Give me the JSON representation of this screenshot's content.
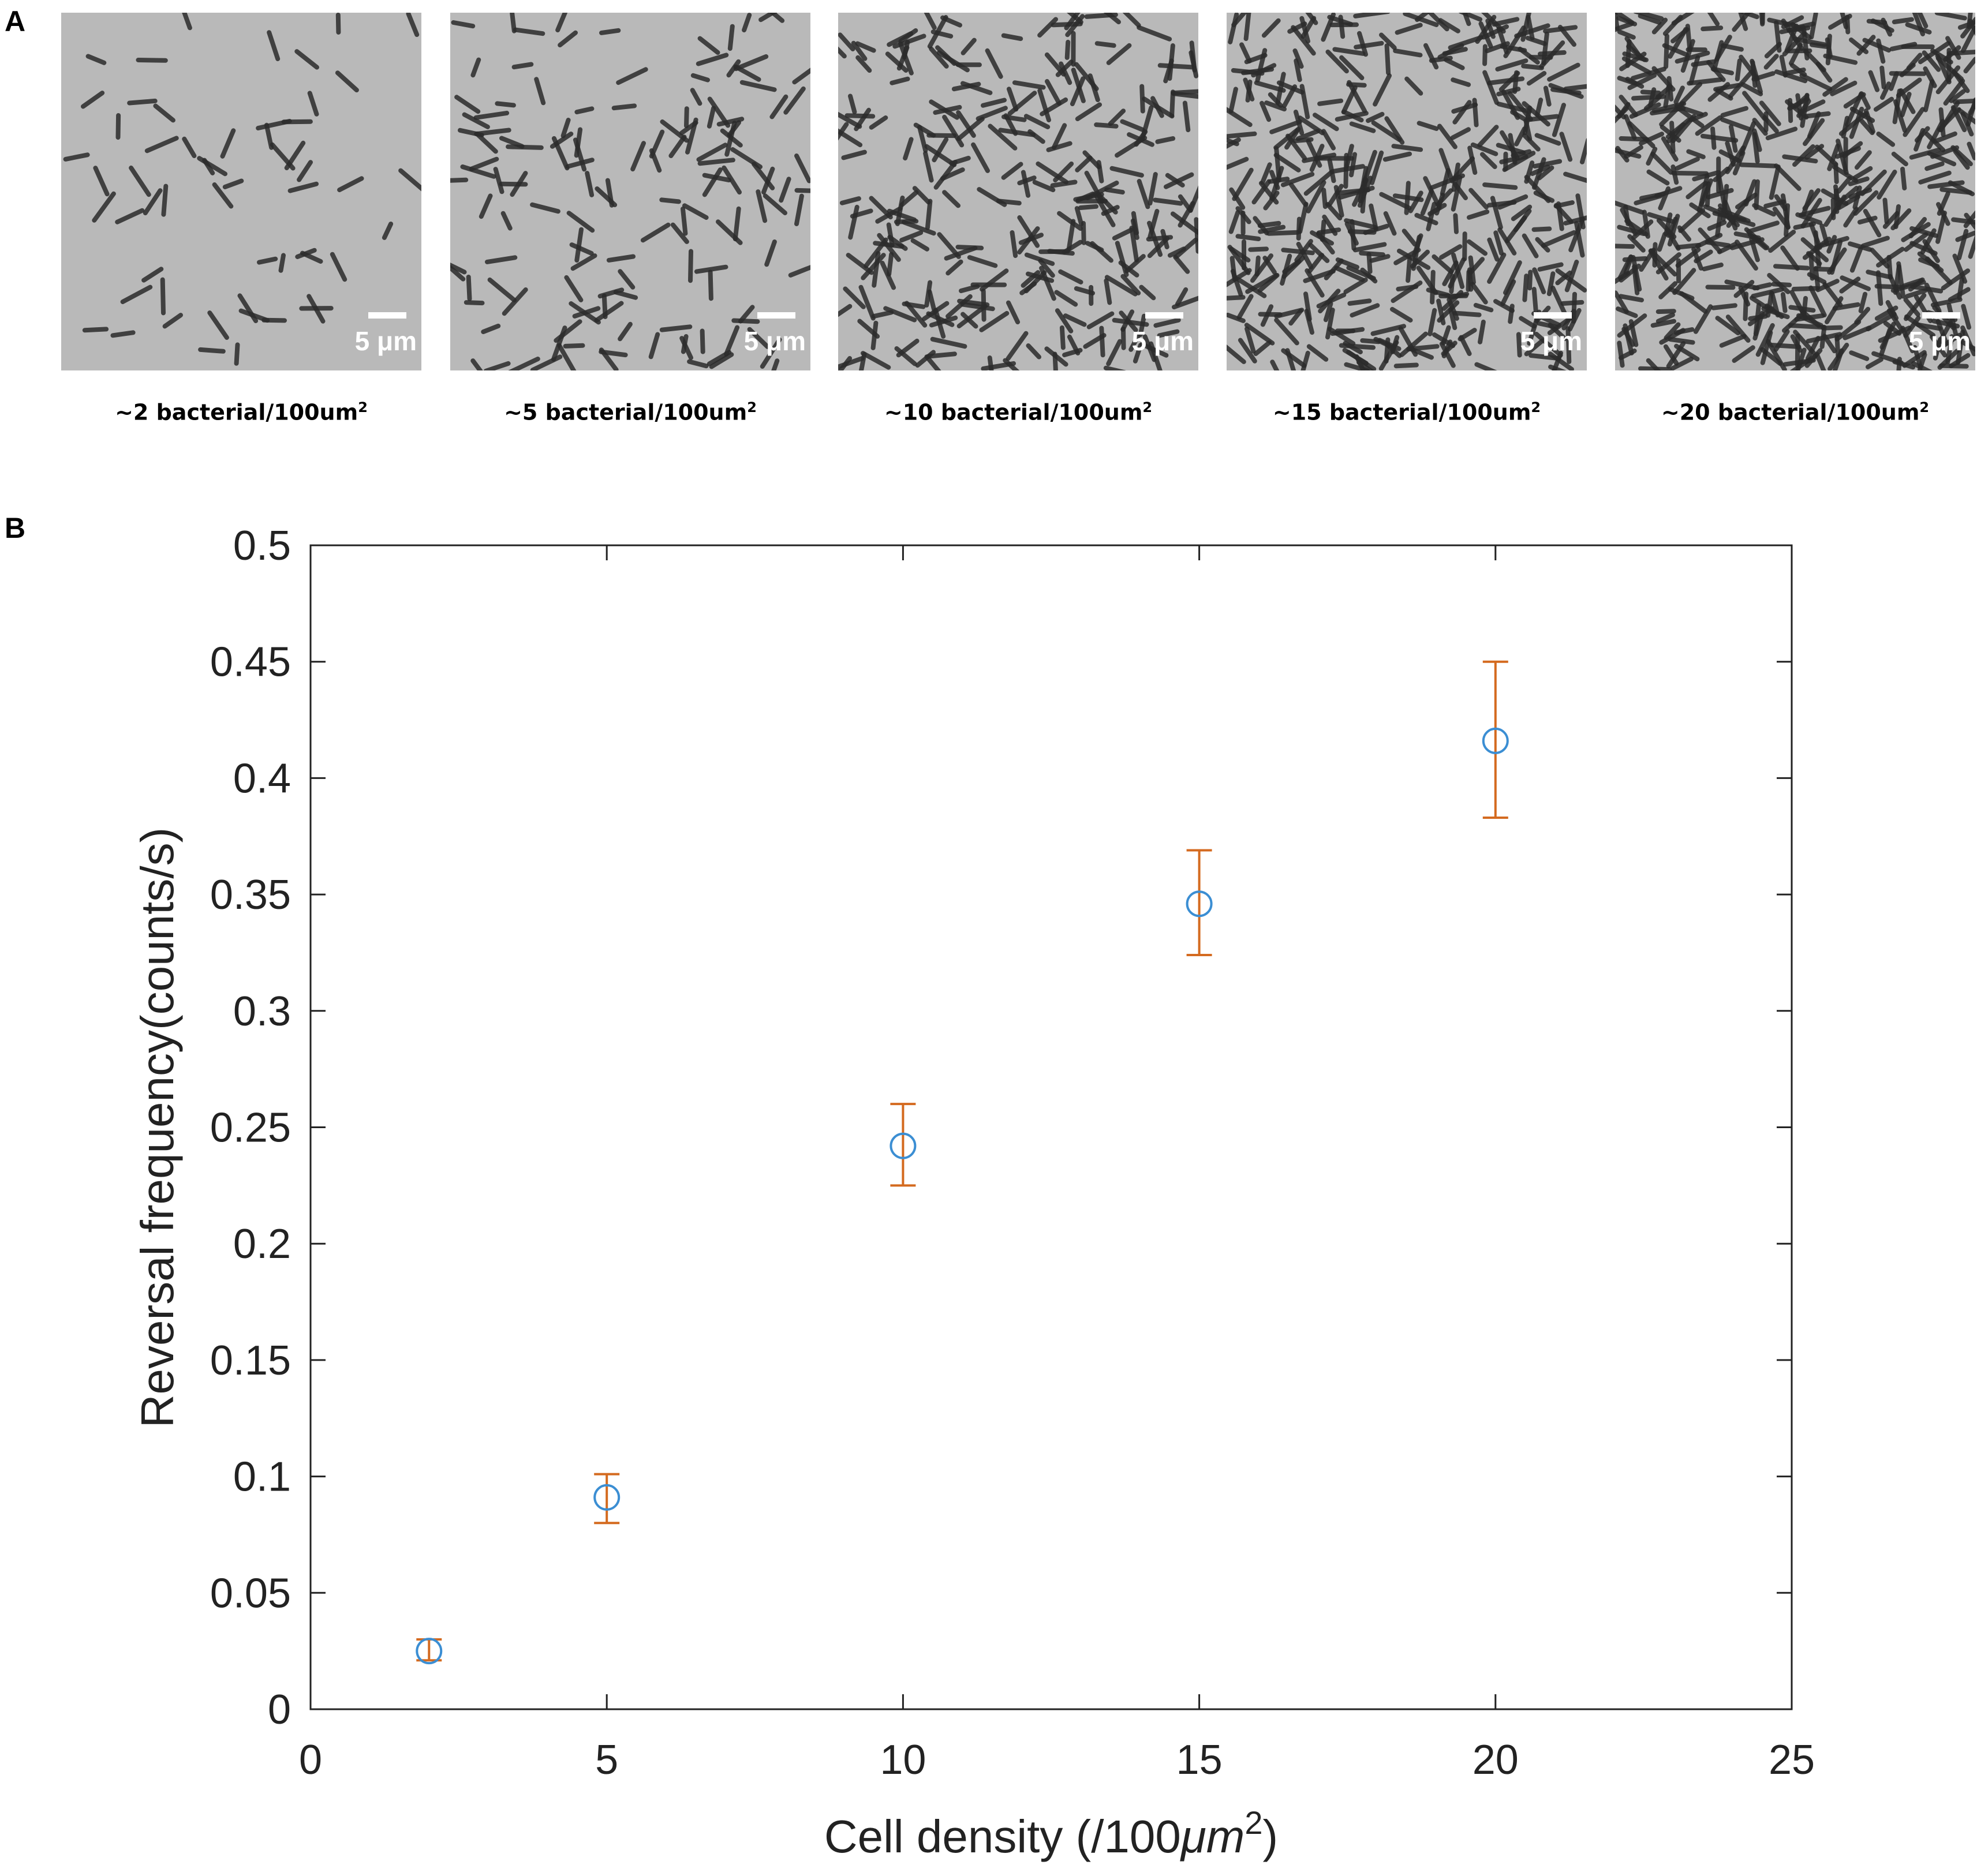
{
  "panel_a": {
    "label": "A",
    "images": [
      {
        "scale_label": "5 μm",
        "caption": "~2 bacterial/100um",
        "caption_sup": "2",
        "density": 2
      },
      {
        "scale_label": "5 μm",
        "caption": "~5 bacterial/100um",
        "caption_sup": "2",
        "density": 5
      },
      {
        "scale_label": "5 μm",
        "caption": "~10 bacterial/100um",
        "caption_sup": "2",
        "density": 10
      },
      {
        "scale_label": "5 μm",
        "caption": "~15 bacterial/100um",
        "caption_sup": "2",
        "density": 15
      },
      {
        "scale_label": "5 μm",
        "caption": "~20 bacterial/100um",
        "caption_sup": "2",
        "density": 20
      }
    ]
  },
  "panel_b": {
    "label": "B"
  },
  "chart_data": {
    "type": "scatter",
    "title": "",
    "xlabel": "Cell density (/100",
    "xlabel_unit": "μm",
    "xlabel_sup": "2",
    "xlabel_close": ")",
    "ylabel": "Reversal frequency(counts/s)",
    "xlim": [
      0,
      25
    ],
    "ylim": [
      0,
      0.5
    ],
    "xticks": [
      0,
      5,
      10,
      15,
      20,
      25
    ],
    "yticks": [
      0,
      0.05,
      0.1,
      0.15,
      0.2,
      0.25,
      0.3,
      0.35,
      0.4,
      0.45,
      0.5
    ],
    "xtick_labels": [
      "0",
      "5",
      "10",
      "15",
      "20",
      "25"
    ],
    "ytick_labels": [
      "0",
      "0.05",
      "0.1",
      "0.15",
      "0.2",
      "0.25",
      "0.3",
      "0.35",
      "0.4",
      "0.45",
      "0.5"
    ],
    "grid": false,
    "series": [
      {
        "x": [
          2,
          5,
          10,
          15,
          20
        ],
        "y": [
          0.025,
          0.091,
          0.242,
          0.346,
          0.416
        ],
        "err_low": [
          0.021,
          0.08,
          0.225,
          0.324,
          0.383
        ],
        "err_high": [
          0.03,
          0.101,
          0.26,
          0.369,
          0.45
        ],
        "marker_color": "#3b8ed3",
        "errorbar_color": "#d46a1f"
      }
    ]
  }
}
